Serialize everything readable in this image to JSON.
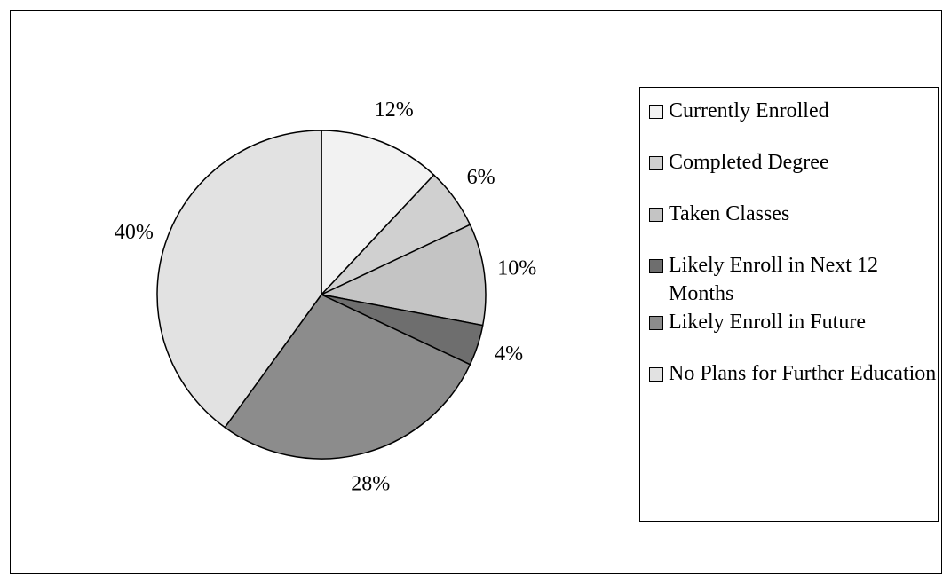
{
  "chart_data": {
    "type": "pie",
    "categories": [
      "Currently Enrolled",
      "Completed Degree",
      "Taken Classes",
      "Likely Enroll in Next 12 Months",
      "Likely Enroll in Future",
      "No Plans for Further Education"
    ],
    "values": [
      12,
      6,
      10,
      4,
      28,
      40
    ],
    "value_labels": [
      "12%",
      "6%",
      "10%",
      "4%",
      "28%",
      "40%"
    ],
    "colors": [
      "#f2f2f2",
      "#d0d0d0",
      "#c4c4c4",
      "#6e6e6e",
      "#8c8c8c",
      "#e2e2e2"
    ],
    "legend": "right"
  }
}
